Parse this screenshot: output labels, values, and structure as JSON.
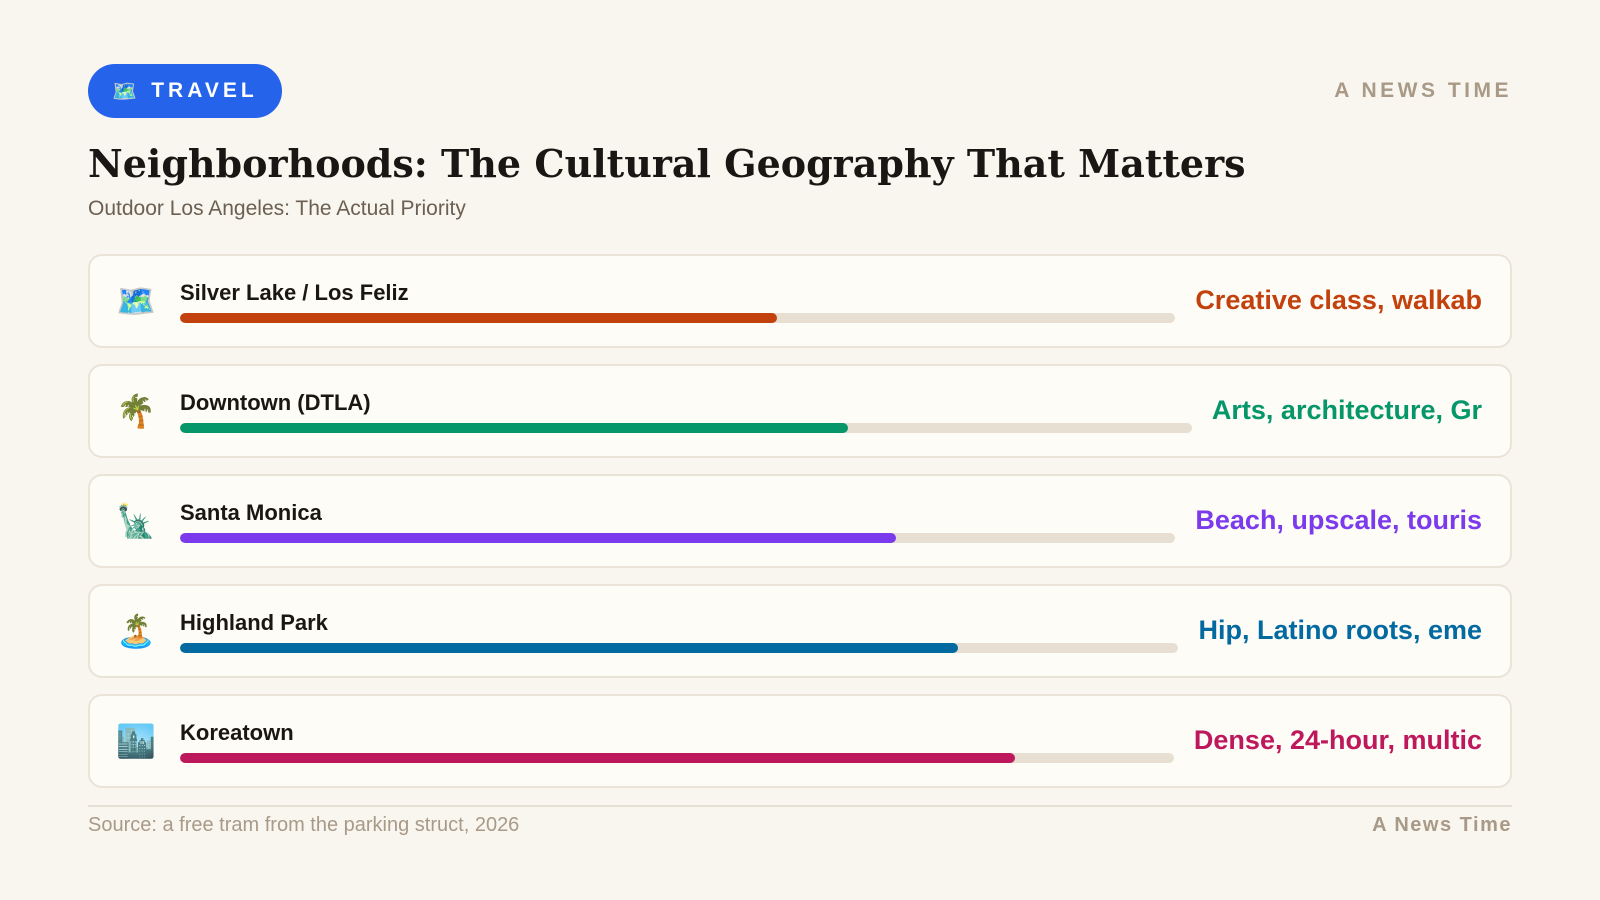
{
  "header": {
    "badge_icon": "🗺️",
    "badge_label": "TRAVEL",
    "brand": "A NEWS TIME"
  },
  "title": "Neighborhoods: The Cultural Geography That Matters",
  "subtitle": "Outdoor Los Angeles: The Actual Priority",
  "chart_data": {
    "type": "bar",
    "orientation": "horizontal",
    "value_unit": "fraction of bar track filled",
    "categories": [
      "Silver Lake / Los Feliz",
      "Downtown (DTLA)",
      "Santa Monica",
      "Highland Park",
      "Koreatown"
    ],
    "values": [
      0.6,
      0.66,
      0.72,
      0.78,
      0.84
    ],
    "items": [
      {
        "label": "Silver Lake / Los Feliz",
        "icon": "🗺️",
        "icon_name": "map-icon",
        "value": 0.6,
        "description": "Creative class, walkab",
        "color": "#c2410c"
      },
      {
        "label": "Downtown (DTLA)",
        "icon": "🌴",
        "icon_name": "palm-tree-icon",
        "value": 0.66,
        "description": "Arts, architecture, Gr",
        "color": "#059669"
      },
      {
        "label": "Santa Monica",
        "icon": "🗽",
        "icon_name": "statue-of-liberty-icon",
        "value": 0.72,
        "description": "Beach, upscale, touris",
        "color": "#7c3aed"
      },
      {
        "label": "Highland Park",
        "icon": "🏝️",
        "icon_name": "island-icon",
        "value": 0.78,
        "description": "Hip, Latino roots, eme",
        "color": "#0369a1"
      },
      {
        "label": "Koreatown",
        "icon": "🏙️",
        "icon_name": "cityscape-icon",
        "value": 0.84,
        "description": "Dense, 24-hour, multic",
        "color": "#be185d"
      }
    ]
  },
  "footer": {
    "source": "Source: a free tram from the parking struct, 2026",
    "brand": "A News Time"
  },
  "colors": {
    "background": "#f9f5ef",
    "badge": "#2563eb",
    "track": "#e6dfd2",
    "muted": "#a89a87"
  }
}
